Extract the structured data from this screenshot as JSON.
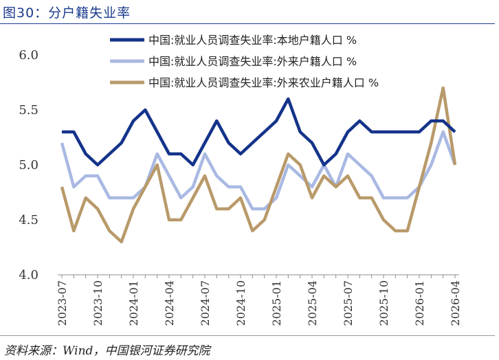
{
  "figure": {
    "title": "图30：分户籍失业率",
    "source": "资料来源：Wind，中国银河证券研究院"
  },
  "chart_data": {
    "type": "line",
    "title": "",
    "xlabel": "",
    "ylabel": "",
    "ylim": [
      4.0,
      6.0
    ],
    "yticks": [
      "4.0",
      "4.5",
      "5.0",
      "5.5",
      "6.0"
    ],
    "grid": false,
    "legend_position": "top",
    "x_tick_labels": [
      "2023-07",
      "2023-10",
      "2024-01",
      "2024-04",
      "2024-07",
      "2024-10",
      "2025-01",
      "2025-04",
      "2025-07",
      "2025-10",
      "2026-01",
      "2026-04"
    ],
    "x_tick_every": 3,
    "x": [
      "2023-07",
      "2023-08",
      "2023-09",
      "2023-10",
      "2023-11",
      "2023-12",
      "2024-01",
      "2024-02",
      "2024-03",
      "2024-04",
      "2024-05",
      "2024-06",
      "2024-07",
      "2024-08",
      "2024-09",
      "2024-10",
      "2024-11",
      "2024-12",
      "2025-01",
      "2025-02",
      "2025-03",
      "2025-04",
      "2025-05",
      "2025-06",
      "2025-07",
      "2025-08",
      "2025-09",
      "2025-10",
      "2025-11",
      "2025-12",
      "2026-01",
      "2026-02",
      "2026-03",
      "2026-04"
    ],
    "series": [
      {
        "name": "中国:就业人员调查失业率:本地户籍人口 %",
        "color": "#14338a",
        "values": [
          5.3,
          5.3,
          5.1,
          5.0,
          5.1,
          5.2,
          5.4,
          5.5,
          5.3,
          5.1,
          5.1,
          5.0,
          5.2,
          5.4,
          5.2,
          5.1,
          5.2,
          5.3,
          5.4,
          5.6,
          5.3,
          5.2,
          5.0,
          5.1,
          5.3,
          5.4,
          5.3,
          5.3,
          5.3,
          5.3,
          5.3,
          5.4,
          5.4,
          5.3
        ]
      },
      {
        "name": "中国:就业人员调查失业率:外来户籍人口 %",
        "color": "#a9b9e3",
        "values": [
          5.2,
          4.8,
          4.9,
          4.9,
          4.7,
          4.7,
          4.7,
          4.8,
          5.1,
          4.9,
          4.7,
          4.8,
          5.1,
          4.9,
          4.8,
          4.8,
          4.6,
          4.6,
          4.7,
          5.0,
          4.9,
          4.8,
          5.0,
          4.8,
          5.1,
          5.0,
          4.9,
          4.7,
          4.7,
          4.7,
          4.8,
          5.0,
          5.3,
          5.0
        ]
      },
      {
        "name": "中国:就业人员调查失业率:外来农业户籍人口 %",
        "color": "#b89a6a",
        "values": [
          4.8,
          4.4,
          4.7,
          4.6,
          4.4,
          4.3,
          4.6,
          4.8,
          5.0,
          4.5,
          4.5,
          4.7,
          4.9,
          4.6,
          4.6,
          4.7,
          4.4,
          4.5,
          4.8,
          5.1,
          5.0,
          4.7,
          4.9,
          4.8,
          4.9,
          4.7,
          4.7,
          4.5,
          4.4,
          4.4,
          4.8,
          5.2,
          5.7,
          5.0
        ]
      }
    ]
  }
}
